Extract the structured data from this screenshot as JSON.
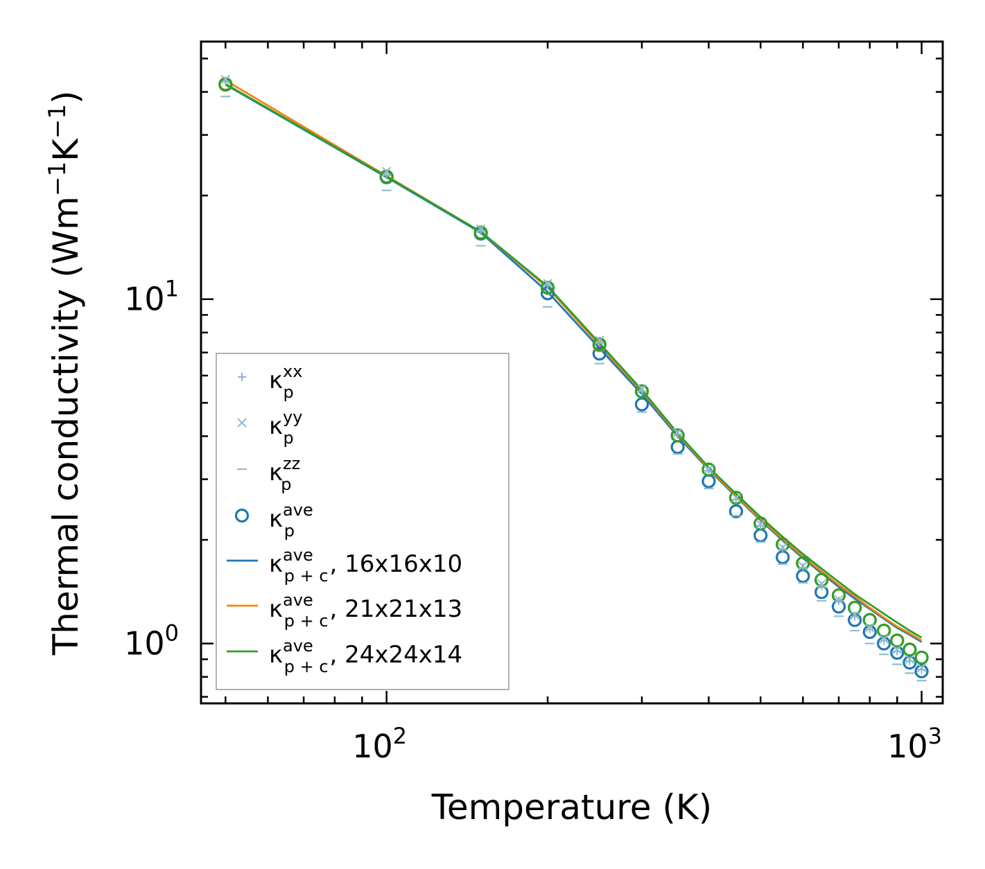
{
  "chart_data": {
    "type": "line",
    "xscale": "log",
    "yscale": "log",
    "xlabel": "Temperature (K)",
    "ylabel": "Thermal conductivity (Wm",
    "ylabel_sup1": "−1",
    "ylabel_mid": "K",
    "ylabel_sup2": "−1",
    "ylabel_end": ")",
    "xlim": [
      45,
      1095
    ],
    "ylim": [
      0.67,
      56
    ],
    "x_ticks": [
      {
        "base": "10",
        "exp": "2",
        "value": 100
      },
      {
        "base": "10",
        "exp": "3",
        "value": 1000
      }
    ],
    "y_ticks": [
      {
        "base": "10",
        "exp": "0",
        "value": 1
      },
      {
        "base": "10",
        "exp": "1",
        "value": 10
      }
    ],
    "temperatures": [
      50,
      100,
      150,
      200,
      250,
      300,
      350,
      400,
      450,
      500,
      550,
      600,
      650,
      700,
      750,
      800,
      850,
      900,
      950,
      1000
    ],
    "series": [
      {
        "name": "kp_xx",
        "kind": "marker",
        "marker": "plus",
        "color": "#8fb0d0",
        "symbol": "κ",
        "sub": "p",
        "sup": "xx",
        "values": [
          42.8,
          22.9,
          15.8,
          11.0,
          7.5,
          5.4,
          4.05,
          3.18,
          2.62,
          2.2,
          1.88,
          1.66,
          1.47,
          1.33,
          1.2,
          1.1,
          1.02,
          0.95,
          0.89,
          0.84
        ]
      },
      {
        "name": "kp_yy",
        "kind": "marker",
        "marker": "x",
        "color": "#90bcd0",
        "symbol": "κ",
        "sub": "p",
        "sup": "yy",
        "values": [
          43.5,
          23.5,
          16.0,
          11.1,
          7.6,
          5.5,
          4.1,
          3.2,
          2.65,
          2.22,
          1.9,
          1.68,
          1.49,
          1.34,
          1.21,
          1.11,
          1.03,
          0.96,
          0.9,
          0.85
        ]
      },
      {
        "name": "kp_zz",
        "kind": "marker",
        "marker": "minus",
        "color": "#90bcd0",
        "symbol": "κ",
        "sub": "p",
        "sup": "zz",
        "values": [
          38.8,
          20.7,
          14.3,
          9.5,
          6.5,
          4.7,
          3.55,
          2.82,
          2.35,
          1.97,
          1.7,
          1.5,
          1.33,
          1.2,
          1.09,
          1.0,
          0.93,
          0.87,
          0.82,
          0.78
        ]
      },
      {
        "name": "kp_ave_16",
        "kind": "circle",
        "color": "#1f77b4",
        "symbol": "κ",
        "sub": "p",
        "sup": "ave",
        "values": [
          42.0,
          22.6,
          15.5,
          10.4,
          6.95,
          4.95,
          3.72,
          2.96,
          2.42,
          2.06,
          1.78,
          1.57,
          1.41,
          1.28,
          1.17,
          1.08,
          1.0,
          0.94,
          0.88,
          0.83
        ]
      },
      {
        "name": "kp_ave_21",
        "kind": "circle-nolegend",
        "color": "#ff7f0e",
        "values": [
          42.2,
          22.7,
          15.6,
          10.8,
          7.35,
          5.4,
          4.02,
          3.2,
          2.65,
          2.23,
          1.94,
          1.71,
          1.53,
          1.38,
          1.27,
          1.17,
          1.09,
          1.02,
          0.96,
          0.91
        ]
      },
      {
        "name": "kp_ave_24",
        "kind": "circle-nolegend",
        "color": "#2ca02c",
        "values": [
          42.0,
          22.7,
          15.6,
          10.8,
          7.4,
          5.4,
          4.02,
          3.2,
          2.65,
          2.23,
          1.94,
          1.71,
          1.53,
          1.38,
          1.27,
          1.17,
          1.09,
          1.02,
          0.96,
          0.91
        ]
      },
      {
        "name": "kpc_16",
        "kind": "line",
        "color": "#1f77b4",
        "symbol": "κ",
        "sub": "p + c",
        "sup": "ave",
        "suffix": ", 16x16x10",
        "values": [
          42.0,
          22.6,
          15.6,
          10.5,
          7.2,
          5.3,
          4.0,
          3.2,
          2.67,
          2.28,
          1.99,
          1.77,
          1.6,
          1.46,
          1.35,
          1.26,
          1.18,
          1.11,
          1.06,
          1.01
        ]
      },
      {
        "name": "kpc_21",
        "kind": "line",
        "color": "#ff7f0e",
        "symbol": "κ",
        "sub": "p + c",
        "sup": "ave",
        "suffix": ", 21x21x13",
        "values": [
          43.2,
          22.8,
          15.7,
          10.8,
          7.35,
          5.4,
          4.05,
          3.22,
          2.69,
          2.3,
          2.01,
          1.79,
          1.62,
          1.48,
          1.37,
          1.27,
          1.19,
          1.12,
          1.07,
          1.02
        ]
      },
      {
        "name": "kpc_24",
        "kind": "line",
        "color": "#2ca02c",
        "symbol": "κ",
        "sub": "p + c",
        "sup": "ave",
        "suffix": ", 24x24x14",
        "values": [
          42.2,
          22.7,
          15.7,
          10.9,
          7.45,
          5.45,
          4.08,
          3.25,
          2.72,
          2.33,
          2.04,
          1.82,
          1.65,
          1.51,
          1.39,
          1.3,
          1.22,
          1.15,
          1.09,
          1.04
        ]
      }
    ]
  }
}
